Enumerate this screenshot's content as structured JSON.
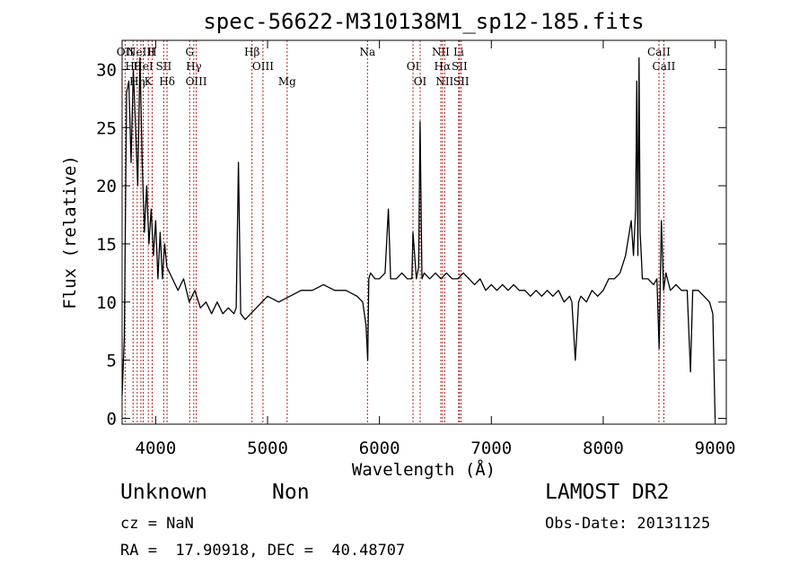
{
  "chart_data": {
    "type": "line",
    "title": "spec-56622-M310138M1_sp12-185.fits",
    "xlabel": "Wavelength (Å)",
    "ylabel": "Flux (relative)",
    "xlim": [
      3700,
      9100
    ],
    "ylim": [
      -0.5,
      32.5
    ],
    "xticks": [
      4000,
      5000,
      6000,
      7000,
      8000,
      9000
    ],
    "yticks": [
      0,
      5,
      10,
      15,
      20,
      25,
      30
    ],
    "grid": false,
    "series": [
      {
        "x": [
          3700,
          3720,
          3740,
          3760,
          3780,
          3800,
          3820,
          3840,
          3860,
          3880,
          3900,
          3920,
          3940,
          3960,
          3980,
          4000,
          4020,
          4040,
          4060,
          4080,
          4100,
          4150,
          4200,
          4250,
          4300,
          4350,
          4400,
          4450,
          4500,
          4550,
          4600,
          4650,
          4700,
          4720,
          4740,
          4760,
          4800,
          4850,
          4900,
          4950,
          5000,
          5100,
          5200,
          5300,
          5400,
          5500,
          5600,
          5700,
          5800,
          5850,
          5880,
          5895,
          5905,
          5920,
          5960,
          6000,
          6050,
          6080,
          6100,
          6150,
          6200,
          6250,
          6290,
          6300,
          6330,
          6350,
          6363,
          6380,
          6400,
          6450,
          6500,
          6550,
          6600,
          6650,
          6700,
          6750,
          6800,
          6850,
          6900,
          6950,
          7000,
          7050,
          7100,
          7150,
          7200,
          7250,
          7300,
          7350,
          7400,
          7450,
          7500,
          7550,
          7600,
          7650,
          7700,
          7720,
          7750,
          7780,
          7800,
          7850,
          7900,
          7950,
          8000,
          8050,
          8100,
          8150,
          8200,
          8250,
          8270,
          8290,
          8300,
          8310,
          8320,
          8330,
          8340,
          8350,
          8400,
          8450,
          8480,
          8500,
          8520,
          8540,
          8560,
          8600,
          8650,
          8700,
          8750,
          8780,
          8800,
          8850,
          8900,
          8950,
          8980,
          9000
        ],
        "y": [
          2.0,
          7.0,
          28.0,
          29.0,
          22.0,
          30.0,
          25.0,
          20.0,
          31.0,
          22.0,
          16.0,
          20.0,
          15.0,
          18.0,
          14.0,
          17.0,
          12.0,
          16.0,
          12.0,
          15.0,
          13.0,
          12.0,
          11.0,
          12.0,
          10.0,
          11.0,
          9.5,
          10.0,
          9.0,
          10.0,
          9.0,
          9.5,
          9.0,
          9.5,
          22.0,
          9.0,
          8.5,
          9.0,
          9.5,
          10.0,
          10.5,
          10.0,
          10.5,
          11.0,
          11.0,
          11.5,
          11.0,
          11.0,
          10.5,
          10.0,
          8.0,
          5.0,
          12.0,
          12.5,
          12.0,
          12.0,
          12.5,
          18.0,
          12.0,
          12.0,
          12.5,
          12.0,
          12.0,
          16.0,
          12.0,
          13.0,
          25.5,
          12.0,
          12.5,
          12.0,
          12.5,
          12.0,
          12.5,
          12.0,
          12.0,
          12.5,
          12.0,
          11.5,
          12.0,
          11.0,
          11.5,
          11.0,
          11.5,
          11.0,
          11.5,
          11.0,
          11.0,
          10.5,
          11.0,
          10.5,
          11.0,
          10.5,
          11.0,
          10.0,
          10.5,
          10.0,
          5.0,
          10.0,
          10.5,
          10.0,
          11.0,
          10.5,
          11.0,
          12.0,
          12.0,
          12.5,
          14.0,
          17.0,
          14.0,
          18.0,
          29.0,
          14.0,
          31.0,
          16.0,
          14.0,
          12.0,
          12.0,
          11.5,
          12.0,
          6.0,
          17.0,
          11.0,
          12.5,
          11.0,
          11.5,
          11.0,
          11.0,
          4.0,
          11.0,
          11.0,
          10.5,
          10.0,
          9.0,
          0.0
        ]
      }
    ],
    "lines": [
      {
        "x": 3727,
        "label": "OII"
      },
      {
        "x": 3798,
        "label": "Hθ"
      },
      {
        "x": 3835,
        "label": "Hη"
      },
      {
        "x": 3868,
        "label": "NeIII"
      },
      {
        "x": 3889,
        "label": "HeI"
      },
      {
        "x": 3934,
        "label": "K"
      },
      {
        "x": 3969,
        "label": "H"
      },
      {
        "x": 4072,
        "label": "SII"
      },
      {
        "x": 4102,
        "label": "Hδ"
      },
      {
        "x": 4304,
        "label": "G"
      },
      {
        "x": 4341,
        "label": "Hγ"
      },
      {
        "x": 4363,
        "label": "OIII"
      },
      {
        "x": 4861,
        "label": "Hβ"
      },
      {
        "x": 4959,
        "label": "OIII"
      },
      {
        "x": 5175,
        "label": "Mg"
      },
      {
        "x": 5893,
        "label": "Na"
      },
      {
        "x": 6300,
        "label": "OI"
      },
      {
        "x": 6364,
        "label": "OI"
      },
      {
        "x": 6548,
        "label": "NII"
      },
      {
        "x": 6563,
        "label": "Hα"
      },
      {
        "x": 6583,
        "label": "NII"
      },
      {
        "x": 6708,
        "label": "Li"
      },
      {
        "x": 6716,
        "label": "SII"
      },
      {
        "x": 6731,
        "label": "SII"
      },
      {
        "x": 8498,
        "label": "CaII"
      },
      {
        "x": 8542,
        "label": "CaII"
      }
    ]
  },
  "info": {
    "class": "Unknown",
    "subclass": "Non",
    "survey": "LAMOST DR2",
    "cz": "cz = NaN",
    "obsdate": "Obs-Date: 20131125",
    "radec": "RA =  17.90918, DEC =  40.48707"
  }
}
